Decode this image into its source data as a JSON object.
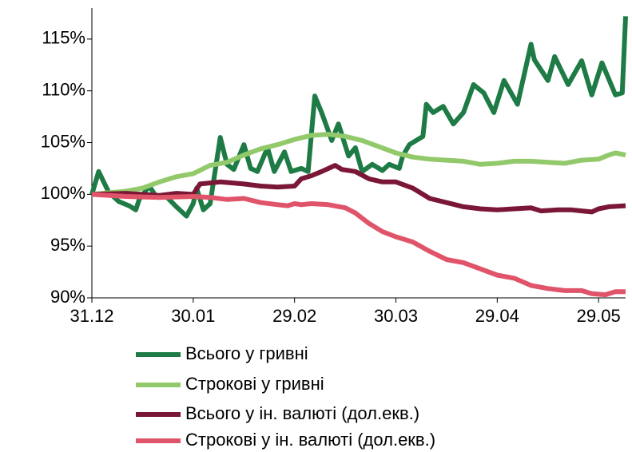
{
  "chart_data": {
    "type": "line",
    "xlim": [
      0,
      158
    ],
    "xticks": [
      {
        "value": 0,
        "label": "31.12"
      },
      {
        "value": 30,
        "label": "30.01"
      },
      {
        "value": 60,
        "label": "29.02"
      },
      {
        "value": 90,
        "label": "30.03"
      },
      {
        "value": 120,
        "label": "29.04"
      },
      {
        "value": 150,
        "label": "29.05"
      }
    ],
    "ylim": [
      90,
      118
    ],
    "yticks": [
      {
        "value": 90,
        "label": "90%"
      },
      {
        "value": 95,
        "label": "95%"
      },
      {
        "value": 100,
        "label": "100%"
      },
      {
        "value": 105,
        "label": "105%"
      },
      {
        "value": 110,
        "label": "110%"
      },
      {
        "value": 115,
        "label": "115%"
      }
    ],
    "grid": false,
    "legend": "bottom",
    "series": [
      {
        "name": "Всього у гривні",
        "color": "#1e7b45",
        "x": [
          0,
          2,
          5,
          8,
          11,
          13,
          14,
          17,
          19,
          22,
          25,
          28,
          30,
          31,
          33,
          35,
          38,
          40,
          42,
          45,
          47,
          49,
          52,
          54,
          57,
          59,
          62,
          64,
          66,
          68,
          71,
          73,
          76,
          78,
          80,
          83,
          86,
          88,
          91,
          92,
          94,
          98,
          99,
          101,
          104,
          107,
          110,
          113,
          116,
          119,
          122,
          126,
          130,
          131,
          135,
          137,
          141,
          145,
          148,
          151,
          155,
          157,
          158
        ],
        "values": [
          100,
          102.2,
          100.2,
          99.3,
          98.9,
          98.5,
          99.5,
          100.8,
          99.8,
          99.8,
          98.8,
          97.9,
          99.1,
          100.6,
          98.5,
          99.1,
          105.5,
          102.9,
          102.4,
          104.8,
          102.5,
          102.2,
          104.5,
          102.2,
          104.1,
          102.2,
          102.5,
          102.2,
          109.5,
          107.9,
          105.2,
          106.8,
          103.7,
          104.5,
          102.2,
          102.9,
          102.3,
          102.9,
          102.5,
          103.7,
          104.8,
          105.6,
          108.7,
          107.9,
          108.5,
          106.8,
          107.9,
          110.6,
          109.8,
          107.9,
          111,
          108.7,
          114.5,
          113,
          111,
          113.3,
          110.6,
          112.9,
          109.6,
          112.7,
          109.6,
          109.8,
          117.2
        ]
      },
      {
        "name": "Строкові у гривні",
        "color": "#92c96a",
        "x": [
          0,
          10,
          15,
          20,
          25,
          30,
          35,
          40,
          45,
          50,
          55,
          60,
          65,
          70,
          75,
          80,
          85,
          90,
          95,
          100,
          105,
          110,
          115,
          120,
          125,
          130,
          135,
          140,
          145,
          150,
          153,
          155,
          158
        ],
        "values": [
          100,
          100.3,
          100.6,
          101.2,
          101.7,
          102,
          102.8,
          103.1,
          103.8,
          104.4,
          104.8,
          105.3,
          105.7,
          105.8,
          105.6,
          105.2,
          104.6,
          104,
          103.6,
          103.4,
          103.3,
          103.2,
          102.9,
          103,
          103.2,
          103.2,
          103.1,
          103,
          103.3,
          103.4,
          103.8,
          104,
          103.8
        ]
      },
      {
        "name": "Всього у ін. валюті (дол.екв.)",
        "color": "#7b1736",
        "x": [
          0,
          10,
          20,
          25,
          30,
          32,
          38,
          45,
          50,
          55,
          60,
          62,
          65,
          68,
          72,
          74,
          78,
          82,
          86,
          90,
          95,
          100,
          105,
          110,
          115,
          120,
          125,
          130,
          133,
          138,
          142,
          145,
          148,
          150,
          153,
          158
        ],
        "values": [
          100,
          100.1,
          99.9,
          100.1,
          100,
          101,
          101.2,
          101,
          100.8,
          100.7,
          100.8,
          101.5,
          101.8,
          102.2,
          102.8,
          102.4,
          102.2,
          101.5,
          101.2,
          101.2,
          100.6,
          99.6,
          99.2,
          98.8,
          98.6,
          98.5,
          98.6,
          98.7,
          98.4,
          98.5,
          98.5,
          98.4,
          98.3,
          98.6,
          98.8,
          98.9
        ]
      },
      {
        "name": "Строкові у ін. валюті (дол.екв.)",
        "color": "#e0546a",
        "x": [
          0,
          10,
          20,
          30,
          35,
          40,
          45,
          50,
          55,
          58,
          60,
          62,
          65,
          70,
          75,
          78,
          82,
          86,
          90,
          95,
          100,
          105,
          110,
          115,
          120,
          125,
          130,
          135,
          140,
          145,
          148,
          152,
          155,
          158
        ],
        "values": [
          100,
          99.8,
          99.7,
          99.8,
          99.7,
          99.5,
          99.6,
          99.2,
          99,
          98.9,
          99.1,
          99,
          99.1,
          99,
          98.7,
          98.2,
          97.2,
          96.4,
          95.9,
          95.4,
          94.5,
          93.7,
          93.4,
          92.8,
          92.2,
          91.9,
          91.2,
          90.9,
          90.7,
          90.7,
          90.4,
          90.3,
          90.6,
          90.6
        ]
      }
    ]
  }
}
